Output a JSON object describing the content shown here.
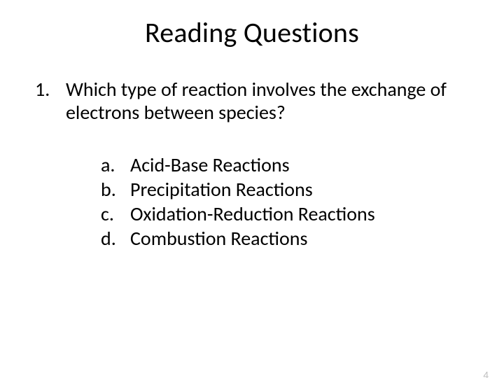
{
  "title": "Reading Questions",
  "question": {
    "number": "1.",
    "text": "Which type of reaction involves the exchange of electrons between species?"
  },
  "options": [
    {
      "letter": "a.",
      "text": "Acid-Base Reactions"
    },
    {
      "letter": "b.",
      "text": "Precipitation Reactions"
    },
    {
      "letter": "c.",
      "text": "Oxidation-Reduction Reactions"
    },
    {
      "letter": "d.",
      "text": "Combustion Reactions"
    }
  ],
  "page_number": "4",
  "colors": {
    "background": "#ffffff",
    "text": "#000000",
    "page_num": "#bfbfbf"
  },
  "fonts": {
    "title_size_pt": 40,
    "body_size_pt": 28,
    "pagenum_size_pt": 15
  }
}
